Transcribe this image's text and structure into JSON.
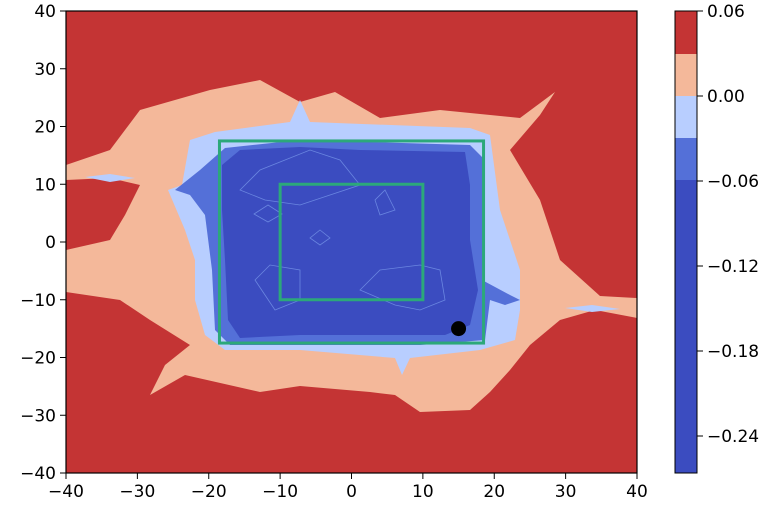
{
  "chart_data": {
    "type": "contour",
    "title": "",
    "xlabel": "",
    "ylabel": "",
    "xlim": [
      -40,
      40
    ],
    "ylim": [
      -40,
      40
    ],
    "x_ticks": [
      "−40",
      "−30",
      "−20",
      "−10",
      "0",
      "10",
      "20",
      "30",
      "40"
    ],
    "y_ticks": [
      "40",
      "30",
      "20",
      "10",
      "0",
      "−10",
      "−20",
      "−30",
      "−40"
    ],
    "grid": false,
    "colorbar": {
      "ticks": [
        "0.06",
        "0.00",
        "−0.06",
        "−0.12",
        "−0.18",
        "−0.24"
      ],
      "tick_values": [
        0.06,
        0.0,
        -0.06,
        -0.12,
        -0.18,
        -0.24
      ],
      "level_colors": [
        "#c43434",
        "#f4b89a",
        "#b8ceff",
        "#5470d8",
        "#3b4cc0"
      ]
    },
    "rectangles": [
      {
        "name": "outer",
        "x": [
          -18.5,
          18.5
        ],
        "y": [
          -17.5,
          17.5
        ],
        "color": "#2ca87a"
      },
      {
        "name": "inner",
        "x": [
          -10,
          10
        ],
        "y": [
          -10,
          10
        ],
        "color": "#2ca87a"
      }
    ],
    "marker": {
      "x": 15,
      "y": -15,
      "color": "#000000"
    }
  }
}
